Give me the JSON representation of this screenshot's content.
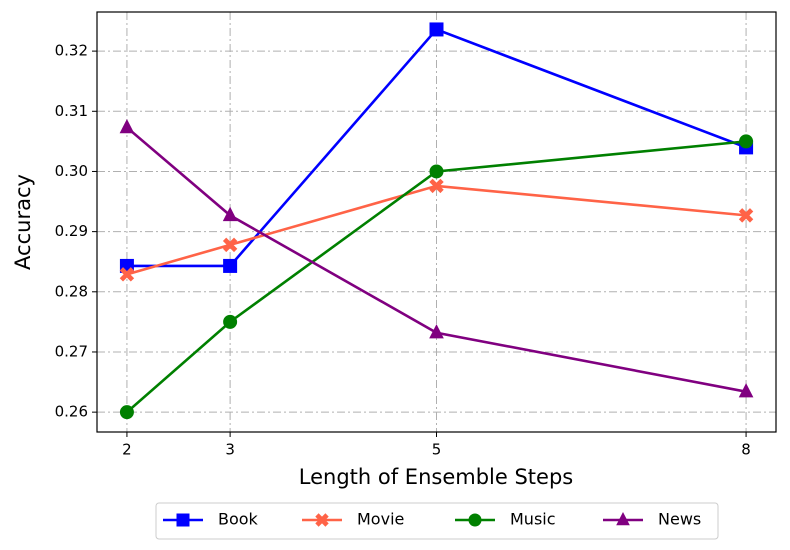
{
  "chart_data": {
    "type": "line",
    "x_label": "Length of Ensemble Steps",
    "y_label": "Accuracy",
    "x": [
      2,
      3,
      5,
      8
    ],
    "series": [
      {
        "name": "Book",
        "color": "#0000ff",
        "marker": "square",
        "values": [
          0.2843,
          0.2843,
          0.3236,
          0.304
        ]
      },
      {
        "name": "Movie",
        "color": "#ff6347",
        "marker": "x",
        "values": [
          0.2829,
          0.2878,
          0.2976,
          0.2927
        ]
      },
      {
        "name": "Music",
        "color": "#008000",
        "marker": "circle",
        "values": [
          0.26,
          0.275,
          0.3,
          0.305
        ]
      },
      {
        "name": "News",
        "color": "#800080",
        "marker": "triangle",
        "values": [
          0.3073,
          0.2927,
          0.2732,
          0.2634
        ]
      }
    ],
    "xlim": [
      1.71,
      8.29
    ],
    "xticks": [
      2,
      3,
      5,
      8
    ],
    "ylim": [
      0.2567,
      0.3265
    ],
    "yticks": [
      0.26,
      0.27,
      0.28,
      0.29,
      {
        "value": 0.3,
        "label": "0.30"
      },
      0.31,
      0.32
    ],
    "grid": true,
    "legend": "bottom"
  }
}
